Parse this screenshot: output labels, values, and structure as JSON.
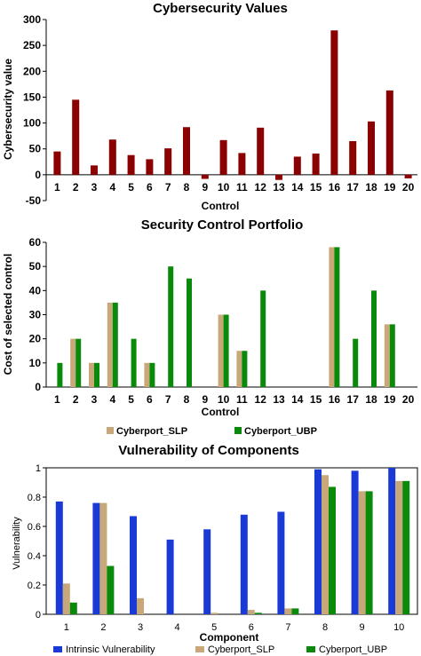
{
  "chart_data": [
    {
      "type": "bar",
      "title": "Cybersecurity Values",
      "xlabel": "Control",
      "ylabel": "Cybersecurity value",
      "ylim": [
        -50,
        300
      ],
      "yticks": [
        -50,
        0,
        50,
        100,
        150,
        200,
        250,
        300
      ],
      "categories": [
        "1",
        "2",
        "3",
        "4",
        "5",
        "6",
        "7",
        "8",
        "9",
        "10",
        "11",
        "12",
        "13",
        "14",
        "15",
        "16",
        "17",
        "18",
        "19",
        "20"
      ],
      "series": [
        {
          "color": "#8b0000",
          "values": [
            45,
            145,
            18,
            68,
            38,
            30,
            51,
            92,
            -8,
            67,
            42,
            91,
            -10,
            35,
            41,
            279,
            65,
            103,
            163,
            -7
          ]
        }
      ],
      "grid": false
    },
    {
      "type": "bar",
      "title": "Security Control Portfolio",
      "xlabel": "Control",
      "ylabel": "Cost of selected control",
      "ylim": [
        0,
        60
      ],
      "yticks": [
        0,
        10,
        20,
        30,
        40,
        50,
        60
      ],
      "categories": [
        "1",
        "2",
        "3",
        "4",
        "5",
        "6",
        "7",
        "8",
        "9",
        "10",
        "11",
        "12",
        "13",
        "14",
        "15",
        "16",
        "17",
        "18",
        "19",
        "20"
      ],
      "series": [
        {
          "name": "Cyberport_SLP",
          "color": "#c8a878",
          "values": [
            0,
            20,
            10,
            35,
            0,
            10,
            0,
            0,
            0,
            30,
            15,
            0,
            0,
            0,
            0,
            58,
            0,
            0,
            26,
            0
          ]
        },
        {
          "name": "Cyberport_UBP",
          "color": "#0a8a0a",
          "values": [
            10,
            20,
            10,
            35,
            20,
            10,
            50,
            45,
            0,
            30,
            15,
            40,
            0,
            0,
            0,
            58,
            20,
            40,
            26,
            0
          ]
        }
      ],
      "legend": "bottom",
      "grid": false
    },
    {
      "type": "bar",
      "title": "Vulnerability of Components",
      "xlabel": "Component",
      "ylabel": "Vulnerability",
      "ylim": [
        0,
        1
      ],
      "yticks": [
        0,
        0.2,
        0.4,
        0.6,
        0.8,
        1
      ],
      "categories": [
        "1",
        "2",
        "3",
        "4",
        "5",
        "6",
        "7",
        "8",
        "9",
        "10"
      ],
      "series": [
        {
          "name": "Intrinsic Vulnerability",
          "color": "#1a3ad8",
          "values": [
            0.77,
            0.76,
            0.67,
            0.51,
            0.58,
            0.68,
            0.7,
            0.99,
            0.98,
            1.0
          ]
        },
        {
          "name": "Cyberport_SLP",
          "color": "#c8a878",
          "values": [
            0.21,
            0.76,
            0.11,
            0.0,
            0.01,
            0.03,
            0.04,
            0.95,
            0.84,
            0.91
          ]
        },
        {
          "name": "Cyberport_UBP",
          "color": "#0a8a0a",
          "values": [
            0.08,
            0.33,
            0.0,
            0.0,
            0.0,
            0.01,
            0.04,
            0.87,
            0.84,
            0.91
          ]
        }
      ],
      "legend": "bottom",
      "grid": false
    }
  ]
}
